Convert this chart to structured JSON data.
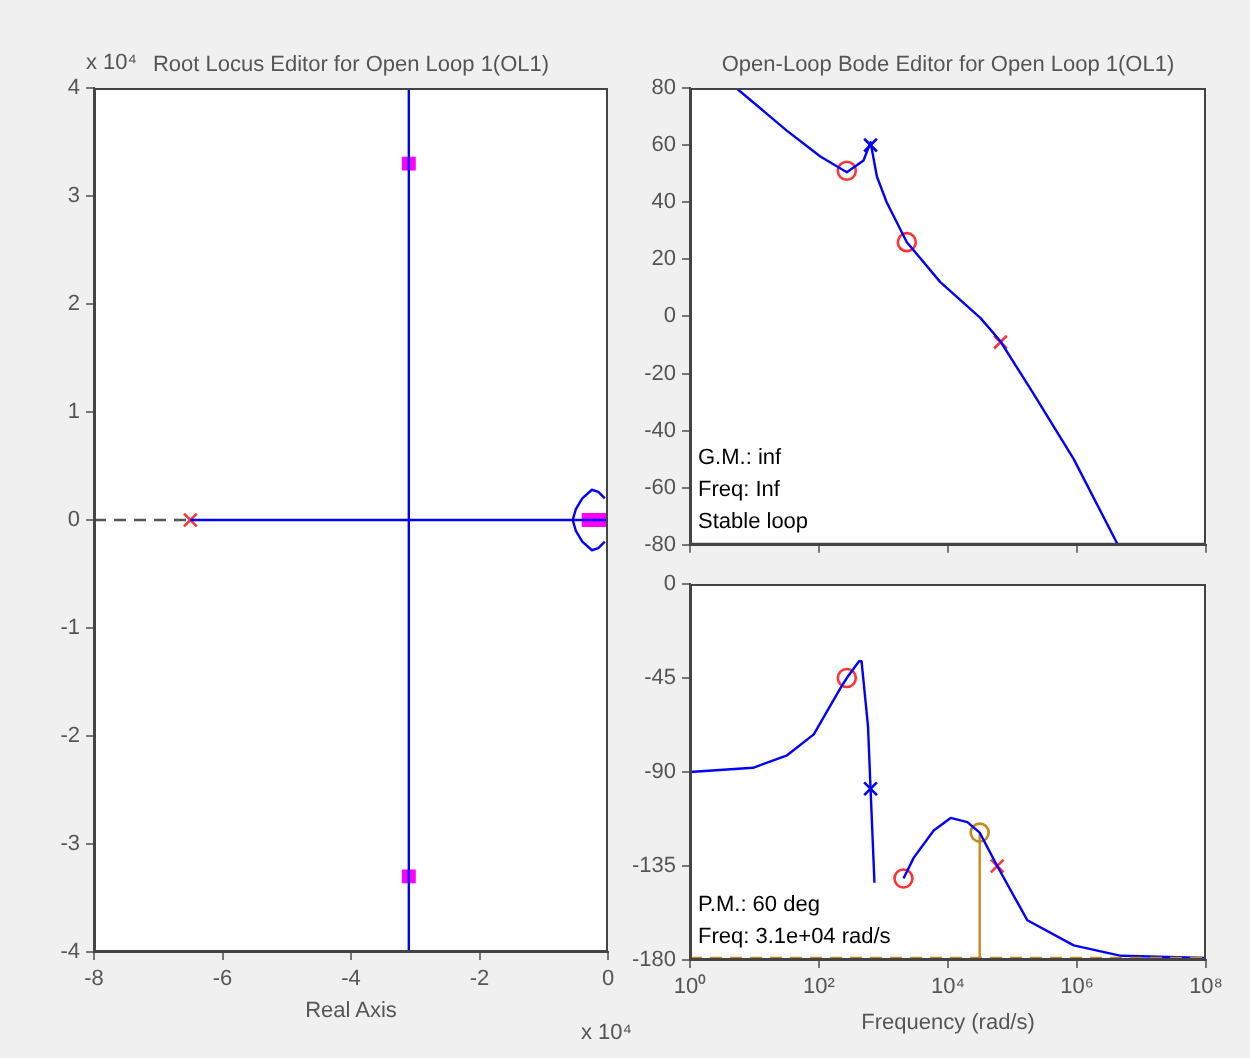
{
  "chart_data": [
    {
      "type": "line",
      "title": "Root Locus Editor for Open Loop 1(OL1)",
      "xlabel": "Real Axis",
      "annotations": [
        "x 10⁴",
        "x 10⁴"
      ],
      "xlim": [
        -8,
        0
      ],
      "ylim": [
        -4,
        4
      ],
      "xticks": [
        -8,
        -6,
        -4,
        -2,
        0
      ],
      "yticks": [
        -4,
        -3,
        -2,
        -1,
        0,
        1,
        2,
        3,
        4
      ],
      "grid": false,
      "legend": false,
      "series": [
        {
          "type": "line",
          "color": "#555555",
          "line_style": "dashed",
          "marker": "none",
          "x": [
            -8,
            -6.5
          ],
          "values": [
            0,
            0
          ]
        },
        {
          "type": "line",
          "color": "#0000ff",
          "marker": "none",
          "x": [
            -6.5,
            0
          ],
          "values": [
            0,
            0
          ]
        },
        {
          "type": "line",
          "color": "#0000ff",
          "marker": "none",
          "x": [
            -3.1,
            -3.1
          ],
          "values": [
            -4,
            4
          ]
        },
        {
          "type": "line",
          "color": "#0000ff",
          "marker": "none",
          "x": [
            -0.05,
            -0.15,
            -0.25,
            -0.4,
            -0.5,
            -0.55,
            -0.5,
            -0.4,
            -0.25,
            -0.15,
            -0.05
          ],
          "values": [
            0.2,
            0.26,
            0.28,
            0.2,
            0.1,
            0,
            -0.1,
            -0.2,
            -0.28,
            -0.26,
            -0.2
          ]
        },
        {
          "type": "scatter",
          "color": "#ff3333",
          "marker": "cross",
          "x": [
            -6.5
          ],
          "values": [
            0
          ]
        },
        {
          "type": "scatter",
          "color": "#ff00ff",
          "marker": "square",
          "x": [
            -3.1,
            -3.1,
            -0.3,
            -0.15,
            0
          ],
          "values": [
            3.3,
            -3.3,
            0,
            0,
            0
          ]
        }
      ]
    },
    {
      "type": "line",
      "title": "Open-Loop Bode Editor for Open Loop 1(OL1)",
      "annotations": [
        "G.M.: inf",
        "Freq: Inf",
        "Stable loop"
      ],
      "log": "x",
      "xlim": [
        1,
        100000000
      ],
      "ylim": [
        -80,
        80
      ],
      "xticks": [
        {
          "value": 1,
          "label": null
        },
        {
          "value": 100,
          "label": null
        },
        {
          "value": 10000,
          "label": null
        },
        {
          "value": 1000000,
          "label": null
        },
        {
          "value": 100000000,
          "label": null
        }
      ],
      "yticks": [
        -80,
        -60,
        -40,
        -20,
        0,
        20,
        40,
        60,
        80
      ],
      "tick_labels": "y",
      "grid": false,
      "legend": false,
      "series": [
        {
          "type": "line",
          "color": "#0000ff",
          "marker": "none",
          "x": [
            5.2,
            32,
            105,
            270,
            490,
            630,
            790,
            1120,
            2300,
            7600,
            32000,
            65000,
            210000,
            890000,
            4300000
          ],
          "values": [
            80,
            65,
            56,
            50.5,
            54.6,
            61,
            49,
            40,
            26,
            12,
            -0.6,
            -8.7,
            -27,
            -50,
            -80
          ]
        },
        {
          "type": "scatter",
          "color": "#ff3333",
          "marker": "circle",
          "x": [
            270,
            2300
          ],
          "values": [
            51,
            26
          ]
        },
        {
          "type": "scatter",
          "color": "#0000ff",
          "marker": "cross",
          "x": [
            630
          ],
          "values": [
            60
          ]
        },
        {
          "type": "scatter",
          "color": "#ff3333",
          "marker": "cross",
          "x": [
            65000
          ],
          "values": [
            -9
          ]
        }
      ]
    },
    {
      "type": "line",
      "xlabel": "Frequency (rad/s)",
      "annotations": [
        "P.M.: 60 deg",
        "Freq: 3.1e+04 rad/s"
      ],
      "log": "x",
      "xlim": [
        1,
        100000000
      ],
      "ylim": [
        -180,
        0
      ],
      "xticks": [
        {
          "value": 1,
          "label": "10⁰"
        },
        {
          "value": 100,
          "label": "10²"
        },
        {
          "value": 10000,
          "label": "10⁴"
        },
        {
          "value": 1000000,
          "label": "10⁶"
        },
        {
          "value": 100000000,
          "label": "10⁸"
        }
      ],
      "yticks": [
        -180,
        -135,
        -90,
        -45,
        0
      ],
      "grid": false,
      "legend": false,
      "ref_lines": [
        {
          "axis": "y",
          "value": -180,
          "color": "#c98a1a",
          "line_style": "dashed"
        }
      ],
      "series": [
        {
          "type": "line",
          "color": "#0000ff",
          "marker": "none",
          "x": [
            1,
            9.5,
            32,
            83,
            214,
            270,
            417,
            457,
            575,
            630,
            724
          ],
          "values": [
            -90,
            -88,
            -82,
            -72,
            -50,
            -45,
            -37,
            -37,
            -68,
            -98,
            -143
          ]
        },
        {
          "type": "line",
          "color": "#0000ff",
          "marker": "none",
          "x": [
            2040,
            2950,
            6000,
            11000,
            20000,
            31000,
            58000,
            170000,
            890000,
            4800000,
            100000000
          ],
          "values": [
            -141,
            -131,
            -118,
            -112,
            -114,
            -119,
            -135,
            -161,
            -173,
            -178,
            -179
          ]
        },
        {
          "type": "line",
          "color": "#c98a1a",
          "marker": "none",
          "x": [
            31000,
            31000
          ],
          "values": [
            -180,
            -119
          ]
        },
        {
          "type": "scatter",
          "color": "#ff3333",
          "marker": "circle",
          "x": [
            270,
            2040
          ],
          "values": [
            -45,
            -141
          ]
        },
        {
          "type": "scatter",
          "color": "#0000ff",
          "marker": "cross",
          "x": [
            630
          ],
          "values": [
            -98
          ]
        },
        {
          "type": "scatter",
          "color": "#c98a1a",
          "marker": "circle",
          "x": [
            31000
          ],
          "values": [
            -119
          ]
        },
        {
          "type": "scatter",
          "color": "#ff3333",
          "marker": "cross",
          "x": [
            58000
          ],
          "values": [
            -135
          ]
        }
      ]
    }
  ]
}
